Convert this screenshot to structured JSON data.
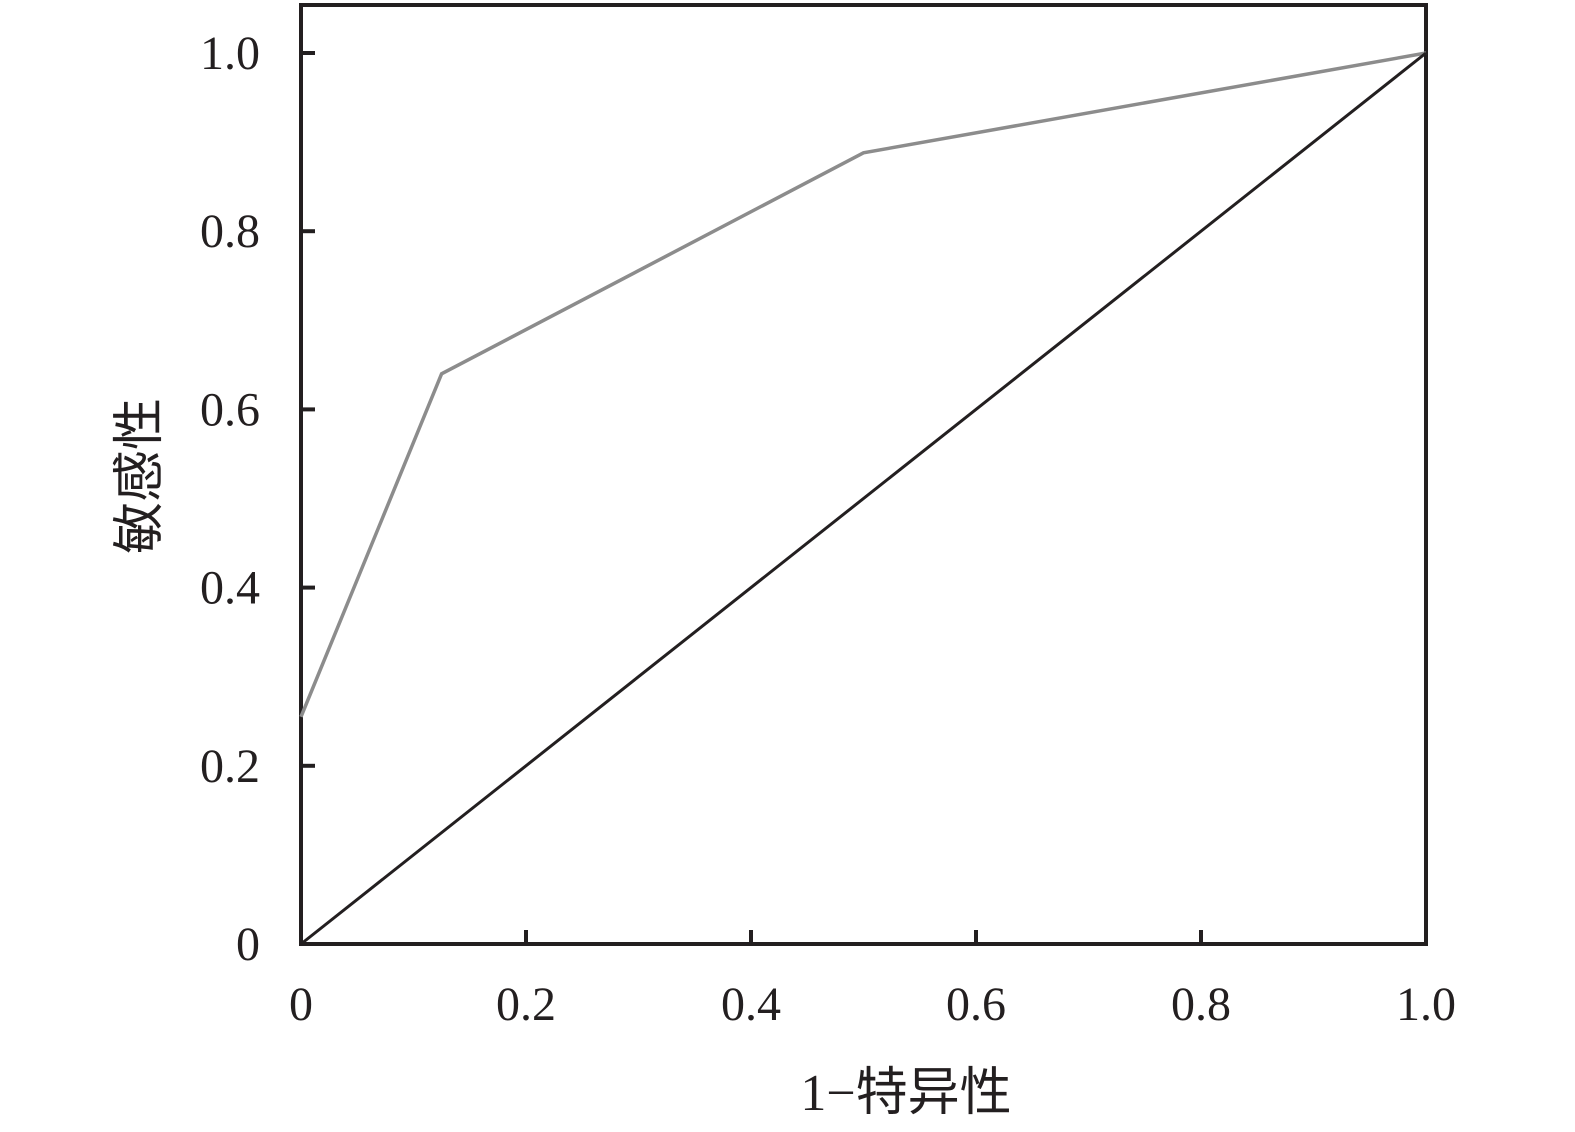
{
  "chart_data": {
    "type": "line",
    "xlabel": "1−特异性",
    "ylabel": "敏感性",
    "xlim": [
      0,
      1
    ],
    "ylim": [
      0,
      1
    ],
    "x_ticks": [
      0,
      0.2,
      0.4,
      0.6,
      0.8,
      1.0
    ],
    "x_tick_labels": [
      "0",
      "0.2",
      "0.4",
      "0.6",
      "0.8",
      "1.0"
    ],
    "y_ticks": [
      0,
      0.2,
      0.4,
      0.6,
      0.8,
      1.0
    ],
    "y_tick_labels": [
      "0",
      "0.2",
      "0.4",
      "0.6",
      "0.8",
      "1.0"
    ],
    "grid": false,
    "series": [
      {
        "color": "#8c8c8c",
        "x": [
          0,
          0.125,
          0.5,
          1.0
        ],
        "y": [
          0.255,
          0.64,
          0.888,
          1.0
        ]
      },
      {
        "color": "#231f20",
        "x": [
          0,
          1.0
        ],
        "y": [
          0,
          1.0
        ]
      }
    ],
    "colors": {
      "axis": "#231f20"
    }
  }
}
